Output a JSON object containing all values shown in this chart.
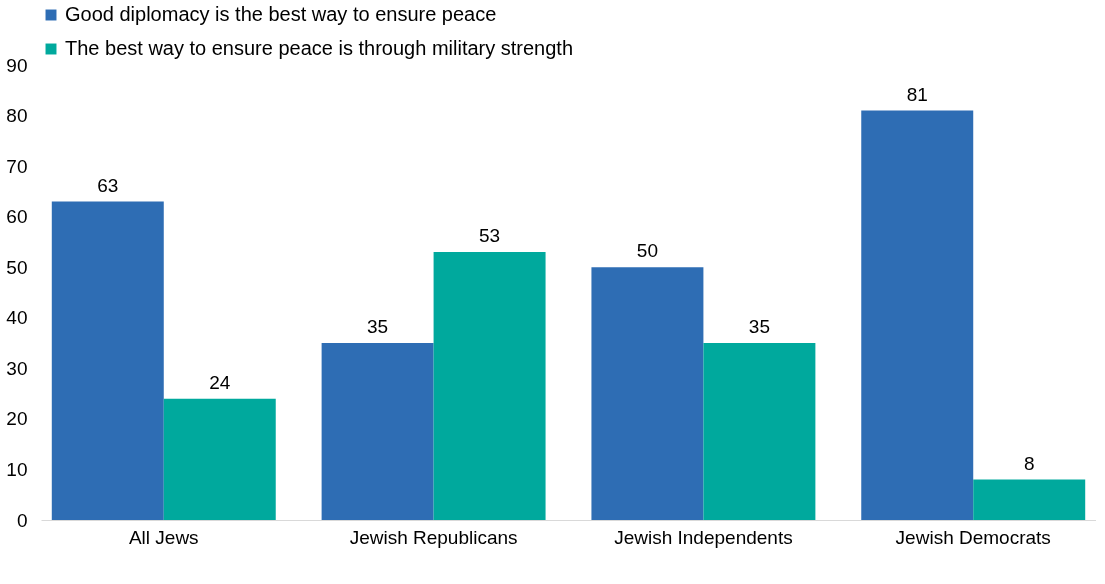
{
  "chart_data": {
    "type": "bar",
    "categories": [
      "All Jews",
      "Jewish Republicans",
      "Jewish Independents",
      "Jewish Democrats"
    ],
    "series": [
      {
        "name": "Good diplomacy is the best way to ensure peace",
        "color": "#2e6db4",
        "values": [
          63,
          35,
          50,
          81
        ]
      },
      {
        "name": "The best way to ensure peace is through military strength",
        "color": "#00a99d",
        "values": [
          24,
          53,
          35,
          8
        ]
      }
    ],
    "ylim": [
      0,
      90
    ],
    "yticks": [
      0,
      10,
      20,
      30,
      40,
      50,
      60,
      70,
      80,
      90
    ],
    "grid": false,
    "legend": "top",
    "data_labels": true
  }
}
